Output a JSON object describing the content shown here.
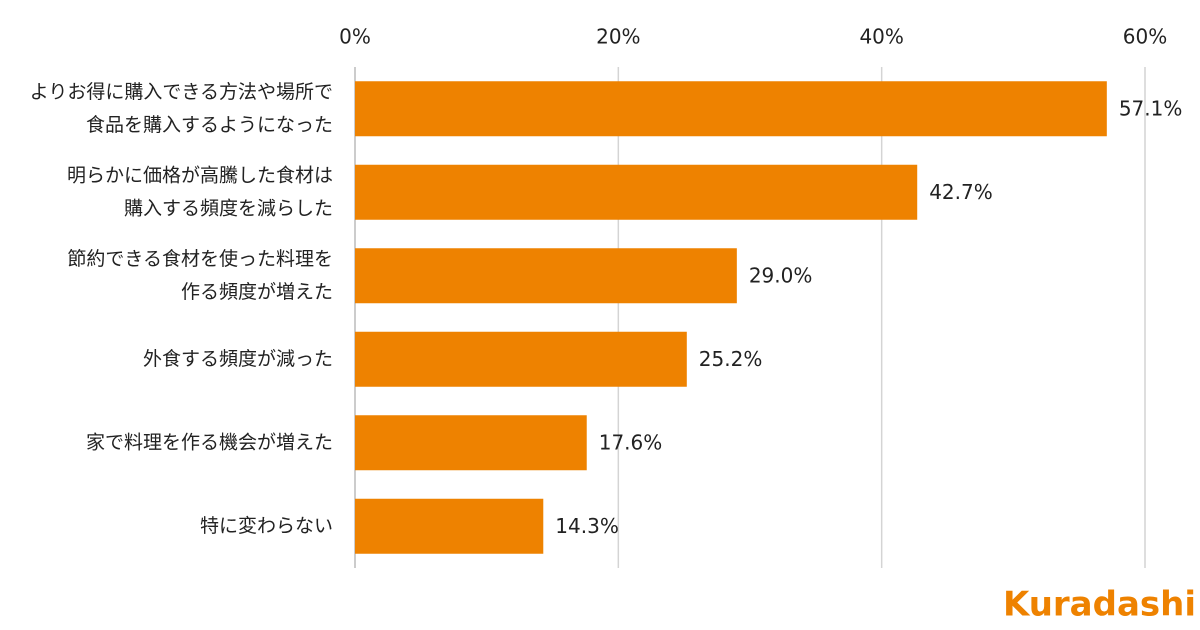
{
  "chart_data": {
    "type": "bar",
    "orientation": "horizontal",
    "categories": [
      [
        "よりお得に購入できる方法や場所で",
        "食品を購入するようになった"
      ],
      [
        "明らかに価格が高騰した食材は",
        "購入する頻度を減らした"
      ],
      [
        "節約できる食材を使った料理を",
        "作る頻度が増えた"
      ],
      [
        "外食する頻度が減った"
      ],
      [
        "家で料理を作る機会が増えた"
      ],
      [
        "特に変わらない"
      ]
    ],
    "values": [
      57.1,
      42.7,
      29.0,
      25.2,
      17.6,
      14.3
    ],
    "value_labels": [
      "57.1%",
      "42.7%",
      "29.0%",
      "25.2%",
      "17.6%",
      "14.3%"
    ],
    "color": "#ee8200",
    "xlim": [
      0,
      60
    ],
    "xticks": [
      {
        "value": 0,
        "label": "0%"
      },
      {
        "value": 20,
        "label": "20%"
      },
      {
        "value": 40,
        "label": "40%"
      },
      {
        "value": 60,
        "label": "60%"
      }
    ],
    "grid": true,
    "logo": "Kuradashi"
  }
}
